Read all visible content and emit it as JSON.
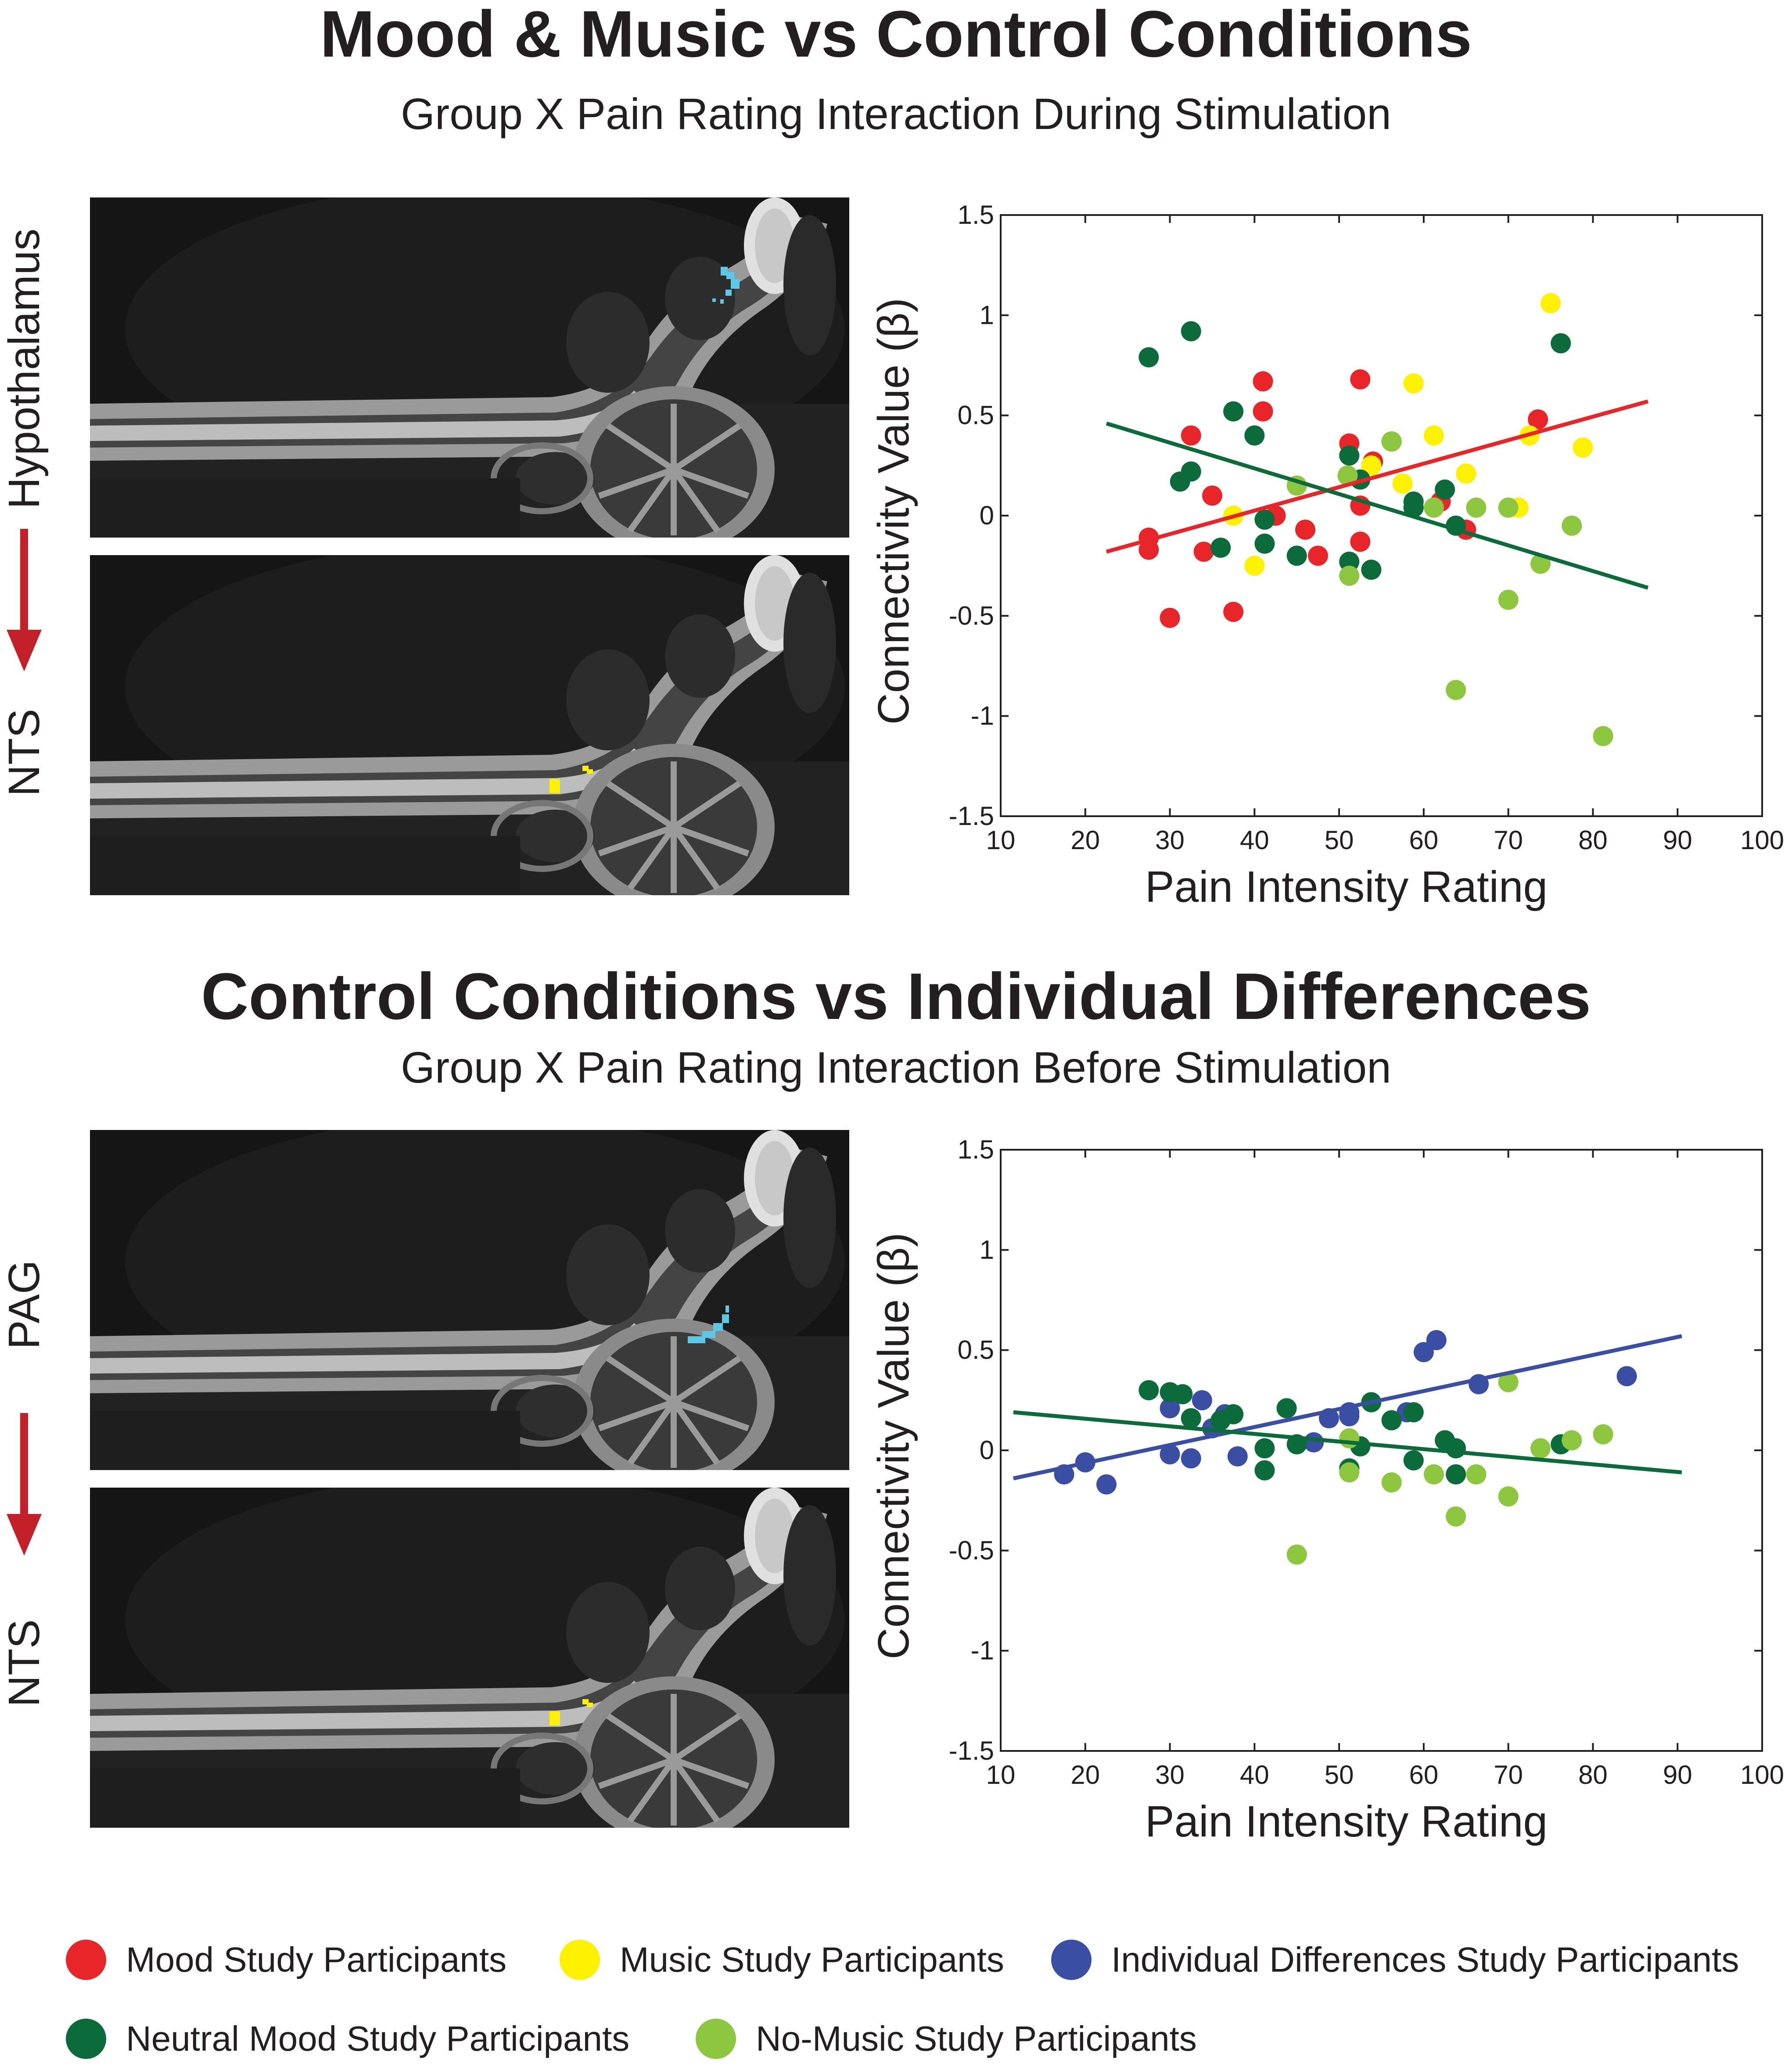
{
  "figure": {
    "top_title": "Mood & Music vs Control Conditions",
    "top_subtitle": "Group X Pain Rating Interaction During Stimulation",
    "bottom_title": "Control Conditions vs Individual Differences",
    "bottom_subtitle": "Group X Pain Rating Interaction Before Stimulation"
  },
  "brain_panels": {
    "top_upper_label": "Hypothalamus",
    "top_lower_label": "NTS",
    "bottom_upper_label": "PAG",
    "bottom_lower_label": "NTS"
  },
  "colors": {
    "mood": "#e8262a",
    "music": "#fff200",
    "individual": "#3a4fa3",
    "neutral": "#0b6b3a",
    "nomusic": "#8dc63f",
    "cyan": "#5bc8e8",
    "arrow": "#c4202a"
  },
  "legend": [
    {
      "label": "Mood Study Participants",
      "color": "#e8262a"
    },
    {
      "label": "Music Study Participants",
      "color": "#fff200"
    },
    {
      "label": "Individual Differences Study Participants",
      "color": "#3a4fa3"
    },
    {
      "label": "Neutral Mood Study Participants",
      "color": "#0b6b3a"
    },
    {
      "label": "No-Music Study Participants",
      "color": "#8dc63f"
    }
  ],
  "chart_data": [
    {
      "type": "scatter",
      "title": "Mood & Music vs Control Conditions",
      "xlabel": "Pain Intensity Rating",
      "ylabel": "Connectivity Value (β)",
      "xlim": [
        10,
        100
      ],
      "ylim": [
        -1.5,
        1.5
      ],
      "xticks": [
        "10",
        "20",
        "30",
        "40",
        "50",
        "60",
        "70",
        "80",
        "90",
        "100"
      ],
      "yticks": [
        "-1.5",
        "-1",
        "-0.5",
        "0",
        "0.5",
        "1",
        "1.5"
      ],
      "series": [
        {
          "name": "Mood Study Participants",
          "color": "#e8262a",
          "points": [
            [
              27.5,
              -0.11
            ],
            [
              27.5,
              -0.17
            ],
            [
              30,
              -0.51
            ],
            [
              32.5,
              0.4
            ],
            [
              34,
              -0.18
            ],
            [
              35,
              0.1
            ],
            [
              37.5,
              -0.48
            ],
            [
              41,
              0.67
            ],
            [
              41,
              0.52
            ],
            [
              42.5,
              0
            ],
            [
              46,
              -0.07
            ],
            [
              47.5,
              -0.2
            ],
            [
              51.2,
              0.36
            ],
            [
              52.5,
              0.05
            ],
            [
              52.5,
              -0.13
            ],
            [
              52.5,
              0.68
            ],
            [
              54,
              0.27
            ],
            [
              62,
              0.07
            ],
            [
              65,
              -0.07
            ],
            [
              73.5,
              0.48
            ]
          ]
        },
        {
          "name": "Music Study Participants",
          "color": "#fff200",
          "points": [
            [
              37.5,
              0
            ],
            [
              40,
              -0.25
            ],
            [
              53.8,
              0.25
            ],
            [
              57.5,
              0.16
            ],
            [
              58.8,
              0.66
            ],
            [
              61.2,
              0.4
            ],
            [
              65,
              0.21
            ],
            [
              71.2,
              0.04
            ],
            [
              72.5,
              0.4
            ],
            [
              75,
              1.06
            ],
            [
              78.8,
              0.34
            ]
          ]
        },
        {
          "name": "Neutral Mood Study Participants",
          "color": "#0b6b3a",
          "points": [
            [
              27.5,
              0.79
            ],
            [
              31.2,
              0.17
            ],
            [
              32.5,
              0.22
            ],
            [
              32.5,
              0.92
            ],
            [
              36,
              -0.16
            ],
            [
              37.5,
              0.52
            ],
            [
              40,
              0.4
            ],
            [
              41.2,
              -0.02
            ],
            [
              41.2,
              -0.14
            ],
            [
              45,
              -0.2
            ],
            [
              51.2,
              0.3
            ],
            [
              51.2,
              -0.23
            ],
            [
              52.5,
              0.18
            ],
            [
              53.8,
              -0.27
            ],
            [
              56.2,
              0.37
            ],
            [
              58.8,
              0.04
            ],
            [
              58.8,
              0.07
            ],
            [
              62.5,
              0.13
            ],
            [
              63.8,
              -0.05
            ],
            [
              76.2,
              0.86
            ]
          ]
        },
        {
          "name": "No-Music Study Participants",
          "color": "#8dc63f",
          "points": [
            [
              45,
              0.15
            ],
            [
              51,
              0.2
            ],
            [
              51.2,
              -0.3
            ],
            [
              56.2,
              0.37
            ],
            [
              61.2,
              0.04
            ],
            [
              63.8,
              -0.87
            ],
            [
              66.2,
              0.04
            ],
            [
              70,
              0.04
            ],
            [
              70,
              -0.42
            ],
            [
              73.8,
              -0.24
            ],
            [
              77.5,
              -0.05
            ],
            [
              81.2,
              -1.1
            ]
          ]
        }
      ],
      "fit_lines": [
        {
          "name": "Mood & Music fit",
          "color": "#e8262a",
          "x": [
            22.5,
            86.5
          ],
          "y": [
            -0.18,
            0.57
          ]
        },
        {
          "name": "Control fit",
          "color": "#0b6b3a",
          "x": [
            22.5,
            86.5
          ],
          "y": [
            0.46,
            -0.36
          ]
        }
      ]
    },
    {
      "type": "scatter",
      "title": "Control Conditions vs Individual Differences",
      "xlabel": "Pain Intensity Rating",
      "ylabel": "Connectivity Value (β)",
      "xlim": [
        10,
        100
      ],
      "ylim": [
        -1.5,
        1.5
      ],
      "xticks": [
        "10",
        "20",
        "30",
        "40",
        "50",
        "60",
        "70",
        "80",
        "90",
        "100"
      ],
      "yticks": [
        "-1.5",
        "-1",
        "-0.5",
        "0",
        "0.5",
        "1",
        "1.5"
      ],
      "series": [
        {
          "name": "Individual Differences Study Participants",
          "color": "#3a4fa3",
          "points": [
            [
              17.5,
              -0.12
            ],
            [
              20,
              -0.06
            ],
            [
              22.5,
              -0.17
            ],
            [
              30,
              0.21
            ],
            [
              30,
              -0.02
            ],
            [
              32.5,
              -0.04
            ],
            [
              33.8,
              0.25
            ],
            [
              35,
              0.11
            ],
            [
              36.5,
              0.18
            ],
            [
              38,
              -0.03
            ],
            [
              47,
              0.04
            ],
            [
              48.8,
              0.16
            ],
            [
              51.2,
              0.17
            ],
            [
              51.2,
              0.19
            ],
            [
              58,
              0.19
            ],
            [
              60,
              0.49
            ],
            [
              61.5,
              0.55
            ],
            [
              66.5,
              0.33
            ],
            [
              84,
              0.37
            ]
          ]
        },
        {
          "name": "Neutral Mood Study Participants",
          "color": "#0b6b3a",
          "points": [
            [
              27.5,
              0.3
            ],
            [
              30,
              0.29
            ],
            [
              31.5,
              0.28
            ],
            [
              32.5,
              0.16
            ],
            [
              36,
              0.15
            ],
            [
              37.5,
              0.18
            ],
            [
              41.2,
              0.01
            ],
            [
              41.2,
              -0.1
            ],
            [
              43.8,
              0.21
            ],
            [
              45,
              0.03
            ],
            [
              51.2,
              -0.09
            ],
            [
              52.5,
              0.02
            ],
            [
              53.8,
              0.24
            ],
            [
              56.2,
              0.15
            ],
            [
              58.8,
              -0.05
            ],
            [
              58.8,
              0.19
            ],
            [
              62.5,
              0.05
            ],
            [
              63.8,
              -0.12
            ],
            [
              63.8,
              0.01
            ],
            [
              76.2,
              0.03
            ]
          ]
        },
        {
          "name": "No-Music Study Participants",
          "color": "#8dc63f",
          "points": [
            [
              45,
              -0.52
            ],
            [
              51.2,
              -0.11
            ],
            [
              51.2,
              0.06
            ],
            [
              56.2,
              -0.16
            ],
            [
              61.2,
              -0.12
            ],
            [
              63.8,
              -0.33
            ],
            [
              66.2,
              -0.12
            ],
            [
              70,
              -0.23
            ],
            [
              70,
              0.34
            ],
            [
              73.8,
              0.01
            ],
            [
              77.5,
              0.05
            ],
            [
              81.2,
              0.08
            ]
          ]
        }
      ],
      "fit_lines": [
        {
          "name": "Individual Differences fit",
          "color": "#3a4fa3",
          "x": [
            11.5,
            90.5
          ],
          "y": [
            -0.14,
            0.57
          ]
        },
        {
          "name": "Control fit",
          "color": "#0b6b3a",
          "x": [
            11.5,
            90.5
          ],
          "y": [
            0.19,
            -0.11
          ]
        }
      ]
    }
  ]
}
